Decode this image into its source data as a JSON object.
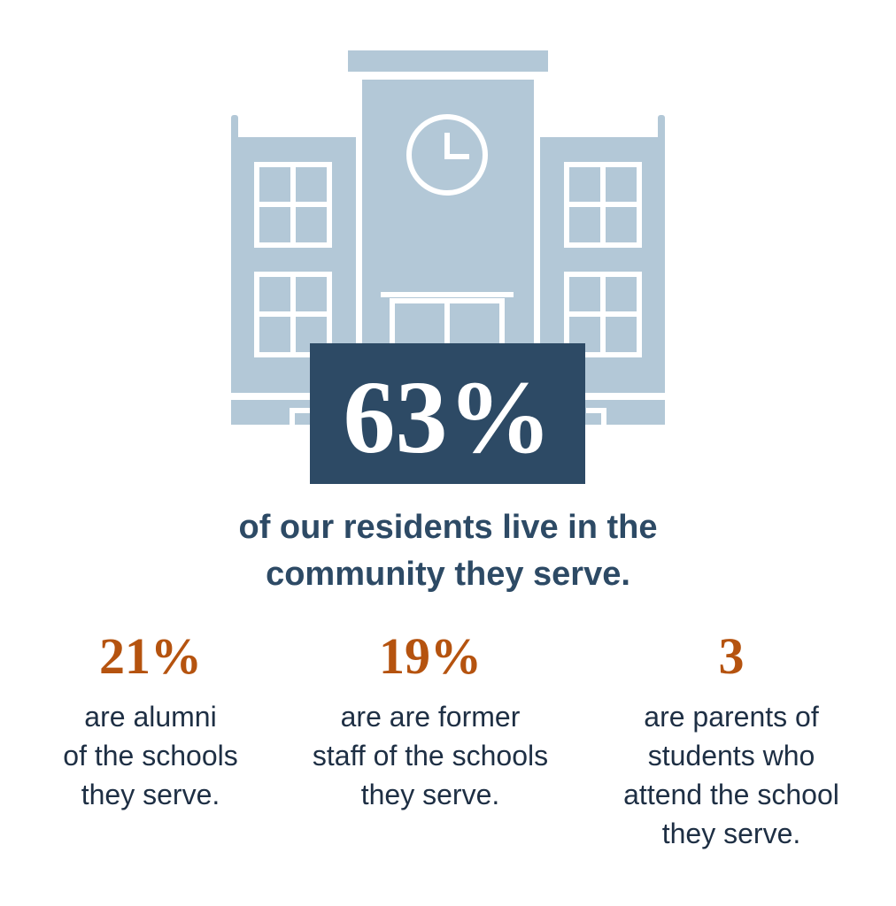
{
  "headline": {
    "value": "63%",
    "caption": [
      "of our residents live in the",
      "community they serve."
    ]
  },
  "stats": [
    {
      "value": "21%",
      "lines": [
        "are alumni",
        "of the schools",
        "they serve."
      ]
    },
    {
      "value": "19%",
      "lines": [
        "are are former",
        "staff of the schools",
        "they serve."
      ]
    },
    {
      "value": "3",
      "lines": [
        "are parents of",
        "students who",
        "attend the school",
        "they serve."
      ]
    }
  ]
}
